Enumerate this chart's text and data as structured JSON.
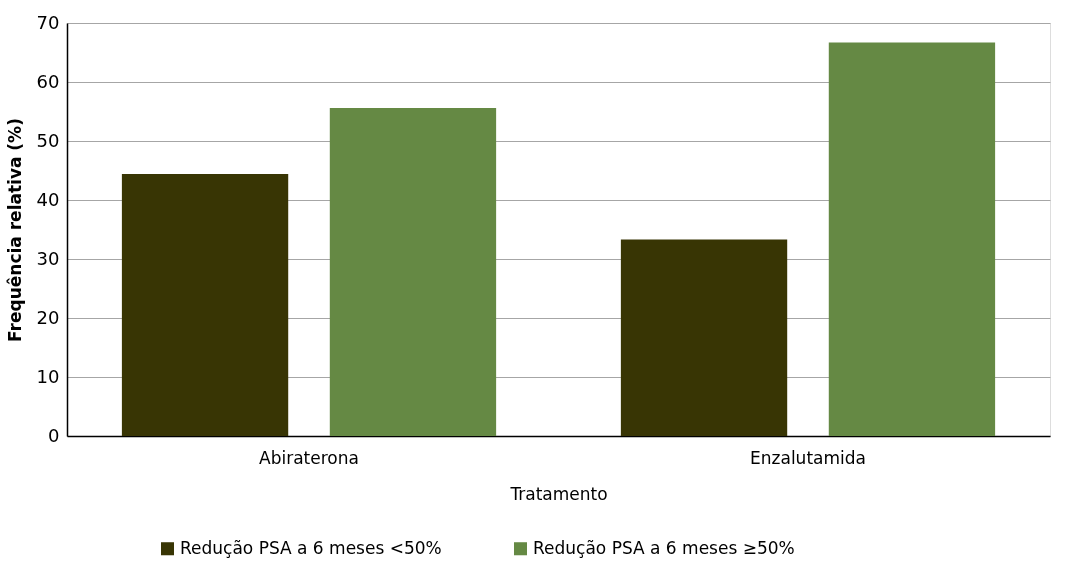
{
  "chart_data": {
    "type": "bar",
    "xlabel": "Tratamento",
    "ylabel": "Frequência relativa (%)",
    "categories": [
      "Abiraterona",
      "Enzalutamida"
    ],
    "series": [
      {
        "name": "Redução PSA a 6 meses <50%",
        "color": "#383504",
        "values": [
          44.4,
          33.3
        ]
      },
      {
        "name": "Redução PSA a 6 meses ≥50%",
        "color": "#658944",
        "values": [
          55.6,
          66.7
        ]
      }
    ],
    "ylim": [
      0,
      70
    ],
    "yticks": [
      0,
      10,
      20,
      30,
      40,
      50,
      60,
      70
    ],
    "grid": "y",
    "legend": "bottom"
  }
}
